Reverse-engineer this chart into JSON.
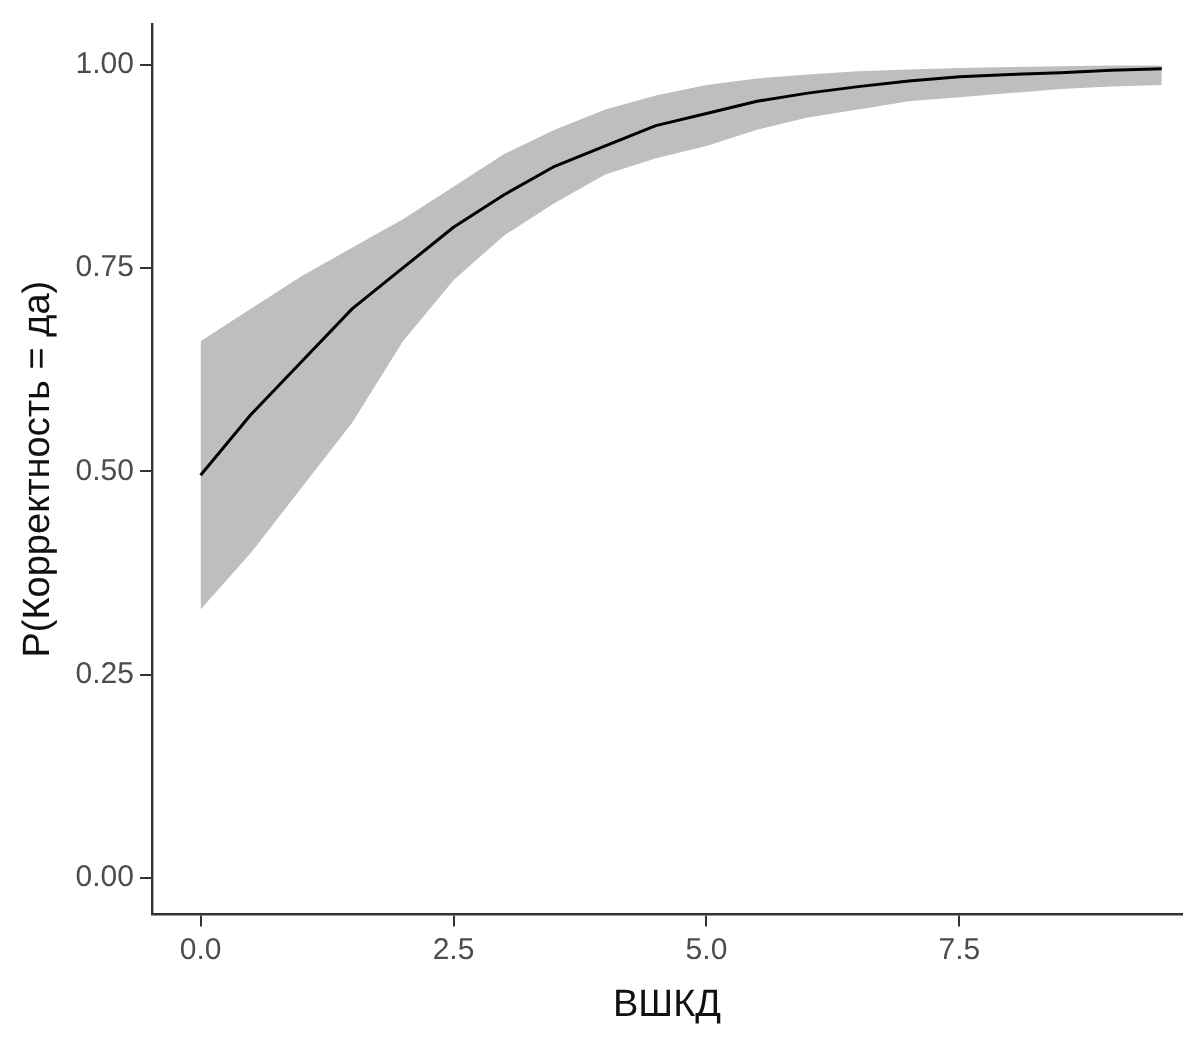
{
  "chart_data": {
    "type": "line",
    "xlabel": "ВШКД",
    "ylabel": "P(Корректность = да)",
    "x": [
      0,
      0.5,
      1,
      1.5,
      2,
      2.5,
      3,
      3.5,
      4,
      4.5,
      5,
      5.5,
      6,
      6.5,
      7,
      7.5,
      8,
      8.5,
      9,
      9.5
    ],
    "series": [
      {
        "color": "#000000",
        "values": [
          0.495,
          0.57,
          0.635,
          0.7,
          0.75,
          0.8,
          0.84,
          0.875,
          0.9,
          0.925,
          0.94,
          0.955,
          0.965,
          0.973,
          0.98,
          0.985,
          0.988,
          0.99,
          0.993,
          0.995
        ],
        "lower": [
          0.33,
          0.4,
          0.48,
          0.56,
          0.66,
          0.735,
          0.79,
          0.83,
          0.865,
          0.885,
          0.9,
          0.92,
          0.935,
          0.945,
          0.955,
          0.96,
          0.965,
          0.97,
          0.973,
          0.975
        ],
        "upper": [
          0.66,
          0.7,
          0.74,
          0.775,
          0.81,
          0.85,
          0.89,
          0.92,
          0.945,
          0.962,
          0.975,
          0.983,
          0.988,
          0.992,
          0.994,
          0.996,
          0.997,
          0.998,
          0.999,
          0.999
        ]
      }
    ],
    "xlim": [
      -0.48,
      9.7
    ],
    "ylim": [
      -0.045,
      1.05
    ],
    "xticks": [
      {
        "value": 0,
        "label": "0.0"
      },
      {
        "value": 2.5,
        "label": "2.5"
      },
      {
        "value": 5,
        "label": "5.0"
      },
      {
        "value": 7.5,
        "label": "7.5"
      }
    ],
    "yticks": [
      {
        "value": 0,
        "label": "0.00"
      },
      {
        "value": 0.25,
        "label": "0.25"
      },
      {
        "value": 0.5,
        "label": "0.50"
      },
      {
        "value": 0.75,
        "label": "0.75"
      },
      {
        "value": 1,
        "label": "1.00"
      }
    ],
    "grid": false,
    "legend": false,
    "marker": "none",
    "line_style": "solid"
  }
}
